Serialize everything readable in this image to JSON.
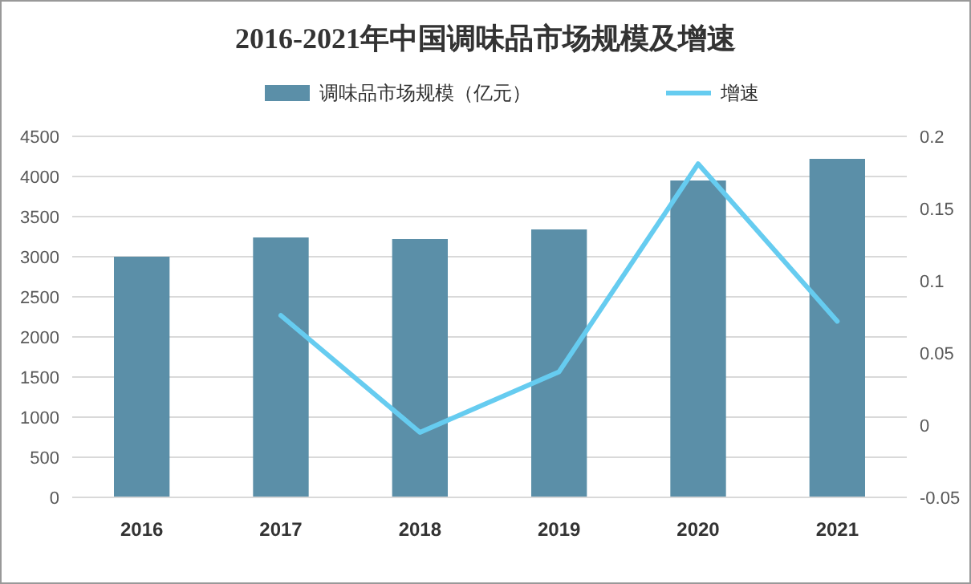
{
  "chart_data": {
    "type": "bar",
    "title": "2016-2021年中国调味品市场规模及增速",
    "categories": [
      "2016",
      "2017",
      "2018",
      "2019",
      "2020",
      "2021"
    ],
    "series": [
      {
        "name": "调味品市场规模（亿元）",
        "color": "#5b8fa8",
        "values": [
          3000,
          3240,
          3220,
          3340,
          3950,
          4220
        ]
      },
      {
        "name": "增速",
        "type": "line",
        "axis": "y2",
        "color": "#66ccf0",
        "values": [
          null,
          0.076,
          -0.005,
          0.037,
          0.181,
          0.072
        ]
      }
    ],
    "ylim": [
      0,
      4500
    ],
    "yticks": [
      0,
      500,
      1000,
      1500,
      2000,
      2500,
      3000,
      3500,
      4000,
      4500
    ],
    "y2lim": [
      -0.05,
      0.2
    ],
    "y2ticks": [
      -0.05,
      0,
      0.05,
      0.1,
      0.15,
      0.2
    ],
    "grid": "y",
    "legend": "top",
    "marker": "none",
    "line_style": "solid"
  }
}
